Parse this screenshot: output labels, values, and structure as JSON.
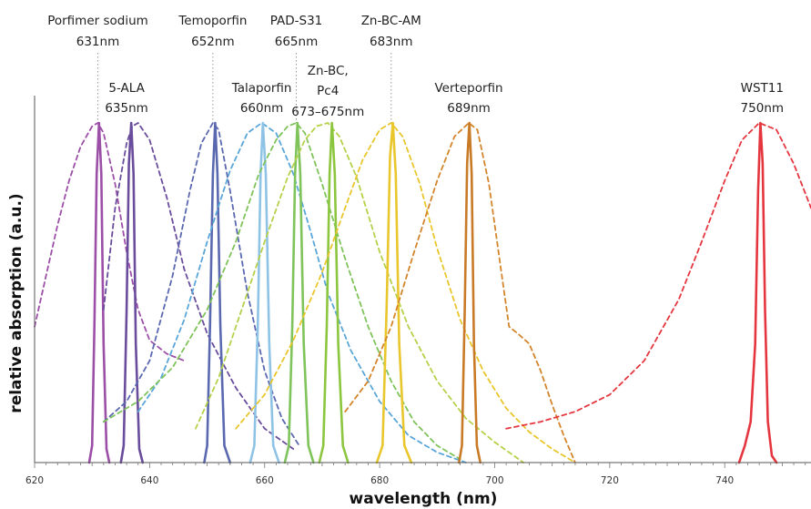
{
  "chart_data": {
    "type": "line",
    "xlabel": "wavelength (nm)",
    "ylabel": "relative absorption (a.u.)",
    "xlim": [
      620,
      755
    ],
    "ylim": [
      0,
      1
    ],
    "x_ticks": [
      620,
      640,
      660,
      680,
      700,
      720,
      740
    ],
    "grid": false,
    "annotations": [
      {
        "name": "Porfimer sodium",
        "wavelength": "631nm",
        "pos": 631
      },
      {
        "name": "5-ALA",
        "wavelength": "635nm",
        "pos": 636
      },
      {
        "name": "Temoporfin",
        "wavelength": "652nm",
        "pos": 651
      },
      {
        "name": "Talaporfin",
        "wavelength": "660nm",
        "pos": 659.5
      },
      {
        "name": "PAD-S31",
        "wavelength": "665nm",
        "pos": 665.5
      },
      {
        "name": "Zn-BC,\nPc4",
        "wavelength": "673–675nm",
        "pos": 671
      },
      {
        "name": "Zn-BC-AM",
        "wavelength": "683nm",
        "pos": 682
      },
      {
        "name": "Verteporfin",
        "wavelength": "689nm",
        "pos": 695.5
      },
      {
        "name": "WST11",
        "wavelength": "750nm",
        "pos": 746.5
      }
    ],
    "series": [
      {
        "color": "#9b4fa6",
        "style": "dashed",
        "x": [
          620,
          622,
          624,
          626,
          628,
          630,
          631,
          632,
          634,
          636,
          638,
          640,
          643,
          646
        ],
        "y": [
          0.4,
          0.55,
          0.7,
          0.83,
          0.93,
          0.99,
          1.0,
          0.97,
          0.82,
          0.62,
          0.45,
          0.36,
          0.32,
          0.3
        ]
      },
      {
        "color": "#9b4fa6",
        "style": "solid",
        "x": [
          629.5,
          630.0,
          630.4,
          630.8,
          631.2,
          631.6,
          632.0,
          632.5,
          633.0
        ],
        "y": [
          0.0,
          0.05,
          0.4,
          0.85,
          1.0,
          0.85,
          0.35,
          0.04,
          0.0
        ]
      },
      {
        "color": "#6a4c9c",
        "style": "dashed",
        "x": [
          632,
          634,
          636,
          637,
          638,
          640,
          643,
          646,
          650,
          655,
          660,
          665
        ],
        "y": [
          0.45,
          0.75,
          0.94,
          0.99,
          1.0,
          0.95,
          0.78,
          0.57,
          0.38,
          0.22,
          0.1,
          0.04
        ]
      },
      {
        "color": "#6a4c9c",
        "style": "solid",
        "x": [
          635.0,
          635.5,
          636.0,
          636.4,
          636.8,
          637.2,
          637.6,
          638.2,
          638.8
        ],
        "y": [
          0.0,
          0.05,
          0.45,
          0.88,
          1.0,
          0.85,
          0.35,
          0.04,
          0.0
        ]
      },
      {
        "color": "#5a68b0",
        "style": "dashed",
        "x": [
          632,
          636,
          640,
          644,
          647,
          649,
          651,
          652,
          654,
          657,
          660,
          663,
          666
        ],
        "y": [
          0.12,
          0.18,
          0.3,
          0.55,
          0.8,
          0.94,
          1.0,
          0.98,
          0.8,
          0.5,
          0.27,
          0.13,
          0.05
        ]
      },
      {
        "color": "#5a68b0",
        "style": "solid",
        "x": [
          649.5,
          650.0,
          650.5,
          651.0,
          651.4,
          651.8,
          652.3,
          653.0,
          654.0
        ],
        "y": [
          0.0,
          0.05,
          0.4,
          0.85,
          1.0,
          0.85,
          0.4,
          0.05,
          0.0
        ]
      },
      {
        "color": "#5aa6d8",
        "style": "dashed",
        "x": [
          638,
          642,
          646,
          650,
          654,
          657,
          659.5,
          662,
          665,
          668,
          671,
          675,
          680,
          685,
          690,
          695
        ],
        "y": [
          0.15,
          0.25,
          0.42,
          0.65,
          0.86,
          0.97,
          1.0,
          0.97,
          0.85,
          0.68,
          0.5,
          0.33,
          0.18,
          0.08,
          0.03,
          0.0
        ]
      },
      {
        "color": "#8ec3e6",
        "style": "solid",
        "x": [
          657.5,
          658.2,
          658.8,
          659.3,
          659.7,
          660.2,
          660.8,
          661.5,
          662.5
        ],
        "y": [
          0.0,
          0.05,
          0.4,
          0.85,
          1.0,
          0.85,
          0.35,
          0.05,
          0.0
        ]
      },
      {
        "color": "#7fc35b",
        "style": "dashed",
        "x": [
          632,
          638,
          644,
          650,
          655,
          659,
          662,
          664,
          665.5,
          667,
          670,
          674,
          678,
          682,
          686,
          690,
          694
        ],
        "y": [
          0.12,
          0.18,
          0.28,
          0.45,
          0.65,
          0.85,
          0.95,
          0.99,
          1.0,
          0.97,
          0.82,
          0.6,
          0.4,
          0.24,
          0.12,
          0.05,
          0.01
        ]
      },
      {
        "color": "#7fc35b",
        "style": "solid",
        "x": [
          663.5,
          664.2,
          664.8,
          665.3,
          665.7,
          666.2,
          666.8,
          667.6,
          668.5
        ],
        "y": [
          0.0,
          0.05,
          0.4,
          0.85,
          1.0,
          0.85,
          0.35,
          0.05,
          0.0
        ]
      },
      {
        "color": "#b5d14a",
        "style": "dashed",
        "x": [
          648,
          652,
          656,
          660,
          664,
          667,
          669,
          671,
          673,
          676,
          680,
          685,
          690,
          695,
          700,
          705
        ],
        "y": [
          0.1,
          0.25,
          0.45,
          0.65,
          0.84,
          0.95,
          0.99,
          1.0,
          0.96,
          0.84,
          0.62,
          0.4,
          0.24,
          0.13,
          0.06,
          0.0
        ]
      },
      {
        "color": "#8cc63e",
        "style": "solid",
        "x": [
          669.5,
          670.2,
          670.8,
          671.3,
          671.7,
          672.2,
          672.8,
          673.6,
          674.5
        ],
        "y": [
          0.0,
          0.05,
          0.4,
          0.85,
          1.0,
          0.85,
          0.35,
          0.05,
          0.0
        ]
      },
      {
        "color": "#e8c62c",
        "style": "dashed",
        "x": [
          655,
          660,
          665,
          670,
          674,
          677,
          680,
          682,
          684,
          687,
          690,
          694,
          698,
          702,
          706,
          710,
          714
        ],
        "y": [
          0.1,
          0.2,
          0.36,
          0.56,
          0.75,
          0.89,
          0.98,
          1.0,
          0.96,
          0.82,
          0.63,
          0.42,
          0.27,
          0.16,
          0.09,
          0.04,
          0.0
        ]
      },
      {
        "color": "#e8c62c",
        "style": "solid",
        "x": [
          679.5,
          680.5,
          681.2,
          681.8,
          682.3,
          682.8,
          683.4,
          684.3,
          685.5
        ],
        "y": [
          0.0,
          0.05,
          0.45,
          0.9,
          1.0,
          0.85,
          0.35,
          0.05,
          0.0
        ]
      },
      {
        "color": "#d3852c",
        "style": "dashed",
        "x": [
          674,
          678,
          682,
          686,
          690,
          693,
          695.5,
          697,
          699,
          701,
          702.5,
          704,
          706,
          708,
          710,
          712,
          714
        ],
        "y": [
          0.15,
          0.24,
          0.4,
          0.62,
          0.83,
          0.96,
          1.0,
          0.98,
          0.82,
          0.58,
          0.4,
          0.38,
          0.35,
          0.27,
          0.17,
          0.08,
          0.0
        ]
      },
      {
        "color": "#c87a26",
        "style": "solid",
        "x": [
          693.8,
          694.3,
          694.8,
          695.2,
          695.6,
          696.0,
          696.4,
          696.9,
          697.5
        ],
        "y": [
          0.0,
          0.05,
          0.45,
          0.88,
          1.0,
          0.85,
          0.35,
          0.05,
          0.0
        ]
      },
      {
        "color": "#e5363f",
        "style": "dashed",
        "x": [
          702,
          708,
          714,
          720,
          726,
          732,
          736,
          740,
          743,
          746,
          749,
          752,
          755
        ],
        "y": [
          0.1,
          0.12,
          0.15,
          0.2,
          0.3,
          0.48,
          0.65,
          0.83,
          0.95,
          1.0,
          0.98,
          0.88,
          0.75
        ]
      },
      {
        "color": "#e5363f",
        "style": "solid",
        "x": [
          742.5,
          743.5,
          744.5,
          745.3,
          745.8,
          746.2,
          746.6,
          747.0,
          747.5,
          748.2,
          749.0
        ],
        "y": [
          0.0,
          0.05,
          0.12,
          0.35,
          0.8,
          1.0,
          0.88,
          0.45,
          0.12,
          0.02,
          0.0
        ]
      }
    ]
  }
}
